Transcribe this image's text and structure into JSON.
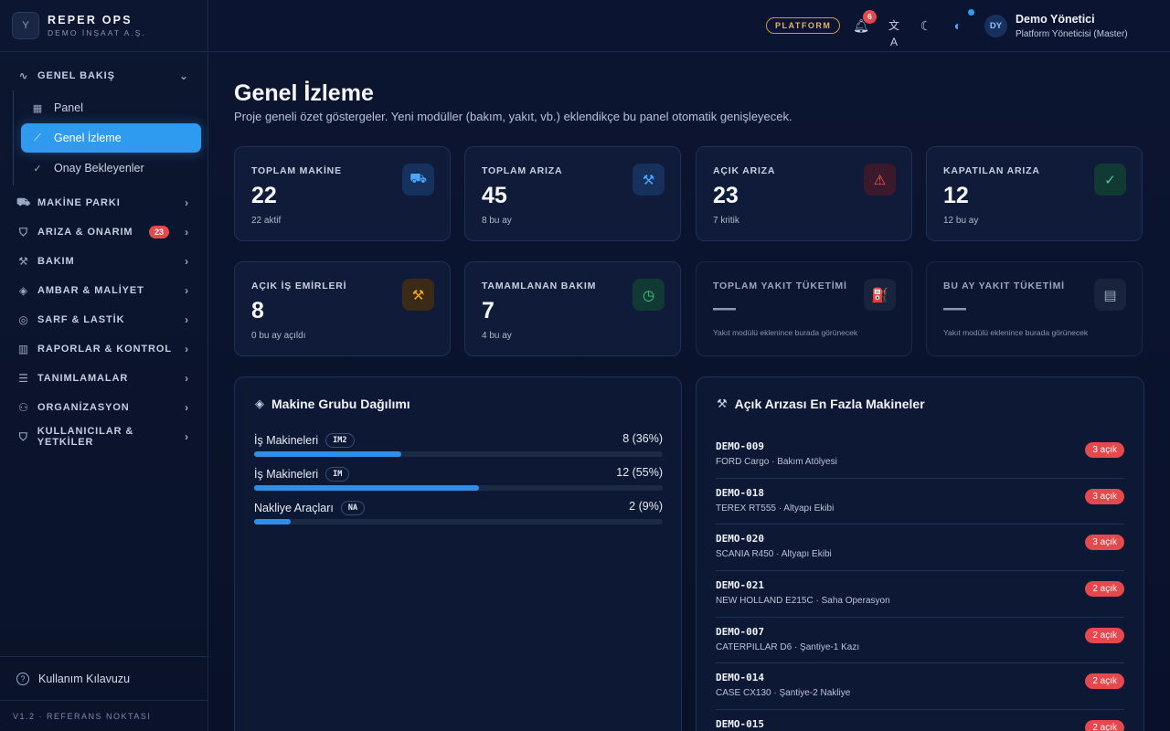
{
  "brand": {
    "title": "REPER OPS",
    "subtitle": "DEMO İNŞAAT A.Ş.",
    "logo": "Y"
  },
  "sidebar": {
    "groups": [
      {
        "label": "GENEL BAKIŞ",
        "icon": "activity-icon",
        "glyph": "∿",
        "expanded": true,
        "items": [
          {
            "label": "Panel",
            "icon": "grid-icon",
            "glyph": "▦"
          },
          {
            "label": "Genel İzleme",
            "icon": "chart-line-icon",
            "glyph": "⟋",
            "active": true
          },
          {
            "label": "Onay Bekleyenler",
            "icon": "check-double-icon",
            "glyph": "✓"
          }
        ]
      },
      {
        "label": "MAKİNE PARKI",
        "icon": "truck-icon",
        "glyph": "⛟"
      },
      {
        "label": "ARIZA & ONARIM",
        "icon": "shield-icon",
        "glyph": "⛉",
        "badge": "23"
      },
      {
        "label": "BAKIM",
        "icon": "wrench-icon",
        "glyph": "⚒"
      },
      {
        "label": "AMBAR & MALİYET",
        "icon": "boxes-icon",
        "glyph": "◈"
      },
      {
        "label": "SARF & LASTİK",
        "icon": "tire-icon",
        "glyph": "◎"
      },
      {
        "label": "RAPORLAR & KONTROL",
        "icon": "bar-chart-icon",
        "glyph": "▥"
      },
      {
        "label": "TANIMLAMALAR",
        "icon": "sliders-icon",
        "glyph": "☰"
      },
      {
        "label": "ORGANİZASYON",
        "icon": "org-chart-icon",
        "glyph": "⚇"
      },
      {
        "label": "KULLANICILAR & YETKİLER",
        "icon": "user-shield-icon",
        "glyph": "⛉"
      }
    ],
    "help_label": "Kullanım Kılavuzu",
    "version": "V1.2 · REFERANS NOKTASI"
  },
  "header": {
    "platform_pill": "PLATFORM",
    "notifications_count": "6",
    "user": {
      "initials": "DY",
      "name": "Demo Yönetici",
      "role": "Platform Yöneticisi (Master)"
    }
  },
  "main": {
    "title": "Genel İzleme",
    "description": "Proje geneli özet göstergeler. Yeni modüller (bakım, yakıt, vb.) eklendikçe bu panel otomatik genişleyecek.",
    "stats": [
      {
        "label": "TOPLAM MAKİNE",
        "value": "22",
        "sub": "22 aktif",
        "icon": "truck-icon",
        "glyph": "⛟",
        "tone": "blue"
      },
      {
        "label": "TOPLAM ARIZA",
        "value": "45",
        "sub": "8 bu ay",
        "icon": "wrench-icon",
        "glyph": "⚒",
        "tone": "blue"
      },
      {
        "label": "AÇIK ARIZA",
        "value": "23",
        "sub": "7 kritik",
        "icon": "warning-icon",
        "glyph": "⚠",
        "tone": "red"
      },
      {
        "label": "KAPATILAN ARIZA",
        "value": "12",
        "sub": "12 bu ay",
        "icon": "check-circle-icon",
        "glyph": "✓",
        "tone": "green"
      },
      {
        "label": "AÇIK İŞ EMİRLERİ",
        "value": "8",
        "sub": "0 bu ay açıldı",
        "icon": "hammer-icon",
        "glyph": "⚒",
        "tone": "amber"
      },
      {
        "label": "TAMAMLANAN BAKIM",
        "value": "7",
        "sub": "4 bu ay",
        "icon": "clock-icon",
        "glyph": "◷",
        "tone": "green"
      },
      {
        "label": "TOPLAM YAKIT TÜKETİMİ",
        "value": "—",
        "sub": "Yakıt modülü eklenince burada görünecek",
        "icon": "fuel-icon",
        "glyph": "⛽",
        "tone": "gray",
        "muted": true
      },
      {
        "label": "BU AY YAKIT TÜKETİMİ",
        "value": "—",
        "sub": "Yakıt modülü eklenince burada görünecek",
        "icon": "calendar-icon",
        "glyph": "▤",
        "tone": "gray",
        "muted": true
      }
    ],
    "group_panel": {
      "title": "Makine Grubu Dağılımı",
      "groups": [
        {
          "name": "İş Makineleri",
          "code": "IM2",
          "value": "8 (36%)",
          "fraction": 0.36
        },
        {
          "name": "İş Makineleri",
          "code": "IM",
          "value": "12 (55%)",
          "fraction": 0.55
        },
        {
          "name": "Nakliye Araçları",
          "code": "NA",
          "value": "2 (9%)",
          "fraction": 0.09
        }
      ]
    },
    "machine_panel": {
      "title": "Açık Arızası En Fazla Makineler",
      "machines": [
        {
          "code": "DEMO-009",
          "desc": "FORD Cargo · Bakım Atölyesi",
          "badge": "3 açık"
        },
        {
          "code": "DEMO-018",
          "desc": "TEREX RT555 · Altyapı Ekibi",
          "badge": "3 açık"
        },
        {
          "code": "DEMO-020",
          "desc": "SCANIA R450 · Altyapı Ekibi",
          "badge": "3 açık"
        },
        {
          "code": "DEMO-021",
          "desc": "NEW HOLLAND E215C · Saha Operasyon",
          "badge": "2 açık"
        },
        {
          "code": "DEMO-007",
          "desc": "CATERPILLAR D6 · Şantiye-1 Kazı",
          "badge": "2 açık"
        },
        {
          "code": "DEMO-014",
          "desc": "CASE CX130 · Şantiye-2 Nakliye",
          "badge": "2 açık"
        },
        {
          "code": "DEMO-015",
          "desc": "",
          "badge": "2 açık"
        }
      ]
    }
  }
}
